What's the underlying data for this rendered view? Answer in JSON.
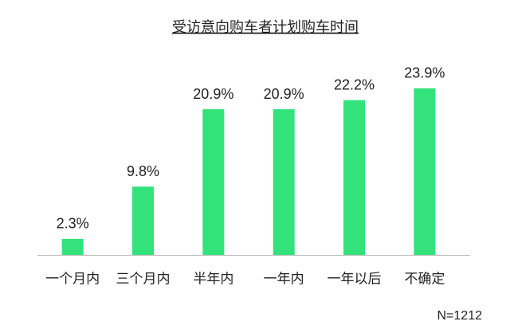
{
  "chart_data": {
    "type": "bar",
    "title": "受访意向购车者计划购车时间",
    "categories": [
      "一个月内",
      "三个月内",
      "半年内",
      "一年内",
      "一年以后",
      "不确定"
    ],
    "values": [
      2.3,
      9.8,
      20.9,
      20.9,
      22.2,
      23.9
    ],
    "value_labels": [
      "2.3%",
      "9.8%",
      "20.9%",
      "20.9%",
      "22.2%",
      "23.9%"
    ],
    "color": "#33e27b",
    "annotation": "N=1212"
  }
}
